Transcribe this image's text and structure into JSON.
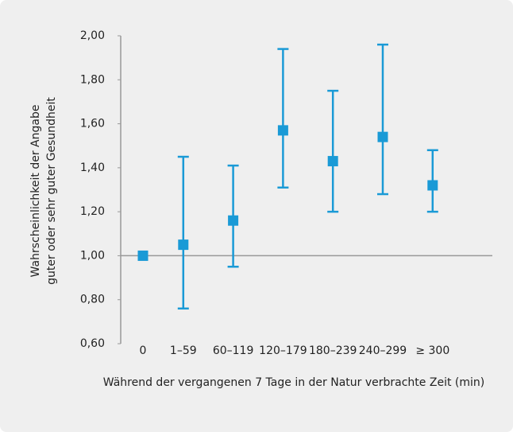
{
  "chart_data": {
    "type": "errorbar",
    "xlabel": "Während der vergangenen 7 Tage in der Natur verbrachte Zeit (min)",
    "ylabel": [
      "Wahrscheinlichkeit der Angabe",
      "guter oder sehr guter Gesundheit"
    ],
    "categories": [
      "0",
      "1–59",
      "60–119",
      "120–179",
      "180–239",
      "240–299",
      "≥ 300"
    ],
    "values": [
      1.0,
      1.05,
      1.16,
      1.57,
      1.43,
      1.54,
      1.32
    ],
    "lower": [
      null,
      0.76,
      0.95,
      1.31,
      1.2,
      1.28,
      1.2
    ],
    "upper": [
      null,
      1.45,
      1.41,
      1.94,
      1.75,
      1.96,
      1.48
    ],
    "color": "#1a9ad6",
    "baseline": 1,
    "ylim": [
      0.6,
      2.0
    ],
    "yticks": [
      {
        "value": 0.6,
        "label": "0,60"
      },
      {
        "value": 0.8,
        "label": "0,80"
      },
      {
        "value": 1.0,
        "label": "1,00"
      },
      {
        "value": 1.2,
        "label": "1,20"
      },
      {
        "value": 1.4,
        "label": "1,40"
      },
      {
        "value": 1.6,
        "label": "1,60"
      },
      {
        "value": 1.8,
        "label": "1,80"
      },
      {
        "value": 2.0,
        "label": "2,00"
      }
    ]
  }
}
